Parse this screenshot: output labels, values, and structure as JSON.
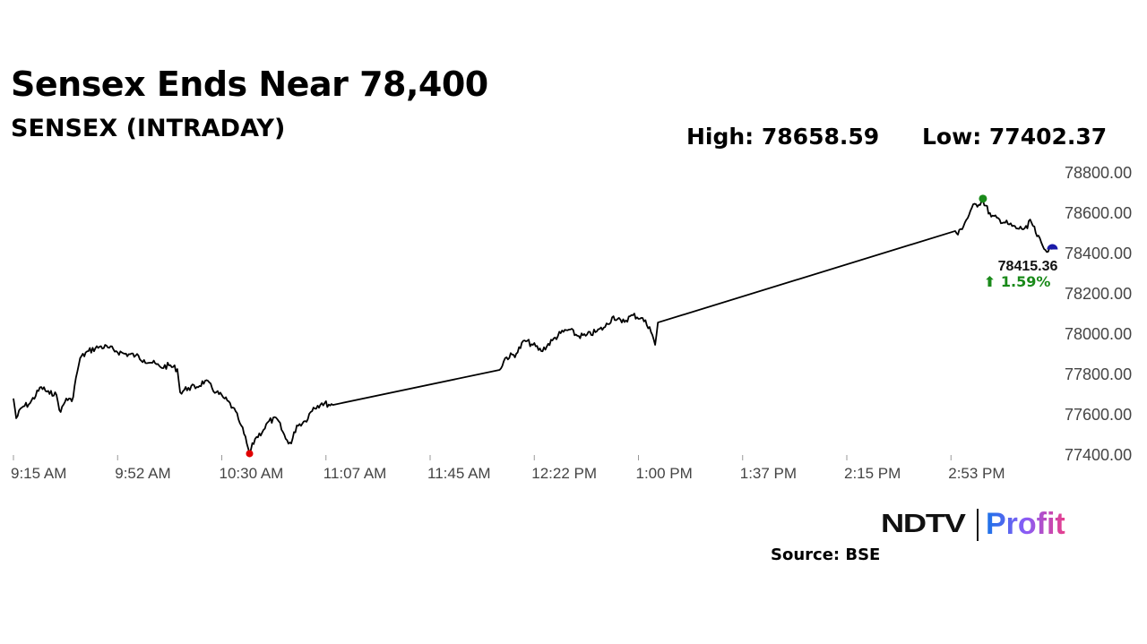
{
  "header": {
    "title": "Sensex Ends Near 78,400",
    "subtitle": "SENSEX (INTRADAY)"
  },
  "stats": {
    "high": "High: 78658.59",
    "low": "Low: 77402.37"
  },
  "footer": {
    "logo": "NDTV | Profit",
    "source": "Source: BSE"
  },
  "chart_data": {
    "type": "line",
    "title": "SENSEX (INTRADAY)",
    "xlabel": "",
    "ylabel": "",
    "ylim": [
      77400,
      78800
    ],
    "y_ticks": [
      "77400.00",
      "77600.00",
      "77800.00",
      "78000.00",
      "78200.00",
      "78400.00",
      "78600.00",
      "78800.00"
    ],
    "x_ticks": [
      "9:15 AM",
      "9:52 AM",
      "10:30 AM",
      "11:07 AM",
      "11:45 AM",
      "12:22 PM",
      "1:00 PM",
      "1:37 PM",
      "2:15 PM",
      "2:53 PM"
    ],
    "y_axis_position": "right",
    "grid": false,
    "line_color": "#000000",
    "markers": {
      "high": {
        "value": 78658.59,
        "time": "15:04",
        "color": "#1a8a1a"
      },
      "low": {
        "value": 77402.37,
        "time": "10:40",
        "color": "#e00000"
      },
      "last": {
        "value": 78415.36,
        "time": "15:29",
        "color": "#1a1aa8"
      }
    },
    "last_label": "78415.36",
    "change_label": "⬆ 1.59%",
    "change_color": "#1a8a1a",
    "series": [
      {
        "points": [
          [
            "9:15",
            77676
          ],
          [
            "9:16",
            77578
          ],
          [
            "9:18",
            77631
          ],
          [
            "9:21",
            77653
          ],
          [
            "9:25",
            77733
          ],
          [
            "9:28",
            77698
          ],
          [
            "9:30",
            77707
          ],
          [
            "9:32",
            77609
          ],
          [
            "9:34",
            77676
          ],
          [
            "9:36",
            77662
          ],
          [
            "9:38",
            77809
          ],
          [
            "9:39",
            77876
          ],
          [
            "9:42",
            77911
          ],
          [
            "9:46",
            77933
          ],
          [
            "9:49",
            77929
          ],
          [
            "9:52",
            77911
          ],
          [
            "9:55",
            77898
          ],
          [
            "9:59",
            77889
          ],
          [
            "10:02",
            77867
          ],
          [
            "10:05",
            77853
          ],
          [
            "10:08",
            77831
          ],
          [
            "10:11",
            77840
          ],
          [
            "10:14",
            77822
          ],
          [
            "10:15",
            77707
          ],
          [
            "10:18",
            77729
          ],
          [
            "10:21",
            77733
          ],
          [
            "10:24",
            77764
          ],
          [
            "10:28",
            77707
          ],
          [
            "10:31",
            77676
          ],
          [
            "10:34",
            77631
          ],
          [
            "10:36",
            77573
          ],
          [
            "10:37",
            77542
          ],
          [
            "10:39",
            77453
          ],
          [
            "10:40",
            77402.37
          ],
          [
            "10:42",
            77476
          ],
          [
            "10:45",
            77520
          ],
          [
            "10:47",
            77564
          ],
          [
            "10:50",
            77573
          ],
          [
            "10:53",
            77476
          ],
          [
            "10:55",
            77453
          ],
          [
            "10:57",
            77542
          ],
          [
            "11:00",
            77564
          ],
          [
            "11:03",
            77631
          ],
          [
            "11:06",
            77653
          ],
          [
            "11:10",
            77644
          ],
          [
            "12:10",
            77818
          ],
          [
            "12:12",
            77876
          ],
          [
            "12:16",
            77898
          ],
          [
            "12:19",
            77964
          ],
          [
            "12:22",
            77942
          ],
          [
            "12:25",
            77911
          ],
          [
            "12:29",
            77964
          ],
          [
            "12:32",
            78000
          ],
          [
            "12:35",
            78018
          ],
          [
            "12:38",
            77987
          ],
          [
            "12:41",
            77987
          ],
          [
            "12:45",
            78009
          ],
          [
            "12:48",
            78031
          ],
          [
            "12:51",
            78084
          ],
          [
            "12:54",
            78053
          ],
          [
            "12:58",
            78089
          ],
          [
            "13:01",
            78076
          ],
          [
            "13:04",
            78031
          ],
          [
            "13:06",
            77942
          ],
          [
            "13:07",
            78053
          ],
          [
            "14:54",
            78507
          ],
          [
            "14:55",
            78489
          ],
          [
            "14:59",
            78587
          ],
          [
            "15:00",
            78622
          ],
          [
            "15:04",
            78658.59
          ],
          [
            "15:07",
            78578
          ],
          [
            "15:10",
            78564
          ],
          [
            "15:13",
            78542
          ],
          [
            "15:16",
            78520
          ],
          [
            "15:20",
            78520
          ],
          [
            "15:21",
            78564
          ],
          [
            "15:23",
            78498
          ],
          [
            "15:26",
            78418
          ],
          [
            "15:29",
            78415.36
          ]
        ]
      }
    ]
  }
}
